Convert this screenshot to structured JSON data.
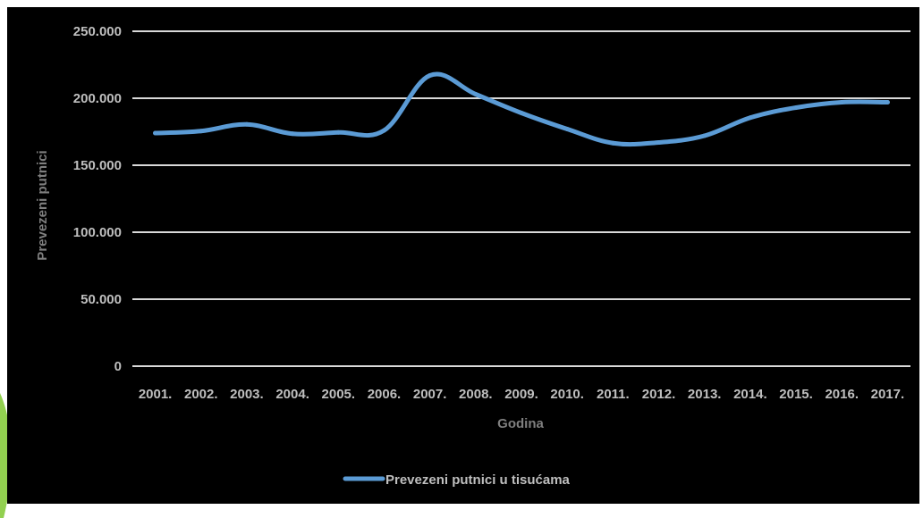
{
  "colors": {
    "background": "#000000",
    "series_line": "#5b9bd5",
    "gridline": "#d9d9d9",
    "tick_text": "#bfbfbf",
    "axis_title_text": "#7f7f7f",
    "accent": "#92d050"
  },
  "chart_data": {
    "type": "line",
    "title": "",
    "xlabel": "Godina",
    "ylabel": "Prevezeni putnici",
    "categories": [
      "2001.",
      "2002.",
      "2003.",
      "2004.",
      "2005.",
      "2006.",
      "2007.",
      "2008.",
      "2009.",
      "2010.",
      "2011.",
      "2012.",
      "2013.",
      "2014.",
      "2015.",
      "2016.",
      "2017."
    ],
    "yticks": [
      0,
      50000,
      100000,
      150000,
      200000,
      250000
    ],
    "ytick_labels": [
      "0",
      "50.000",
      "100.000",
      "150.000",
      "200.000",
      "250.000"
    ],
    "ylim": [
      0,
      250000
    ],
    "grid": true,
    "legend_position": "bottom",
    "series": [
      {
        "name": "Prevezeni putnici u tisućama",
        "values": [
          174000,
          175500,
          180500,
          173500,
          174500,
          176000,
          217000,
          203000,
          189000,
          177000,
          166500,
          167000,
          172000,
          185500,
          193000,
          197000,
          197000
        ]
      }
    ]
  }
}
